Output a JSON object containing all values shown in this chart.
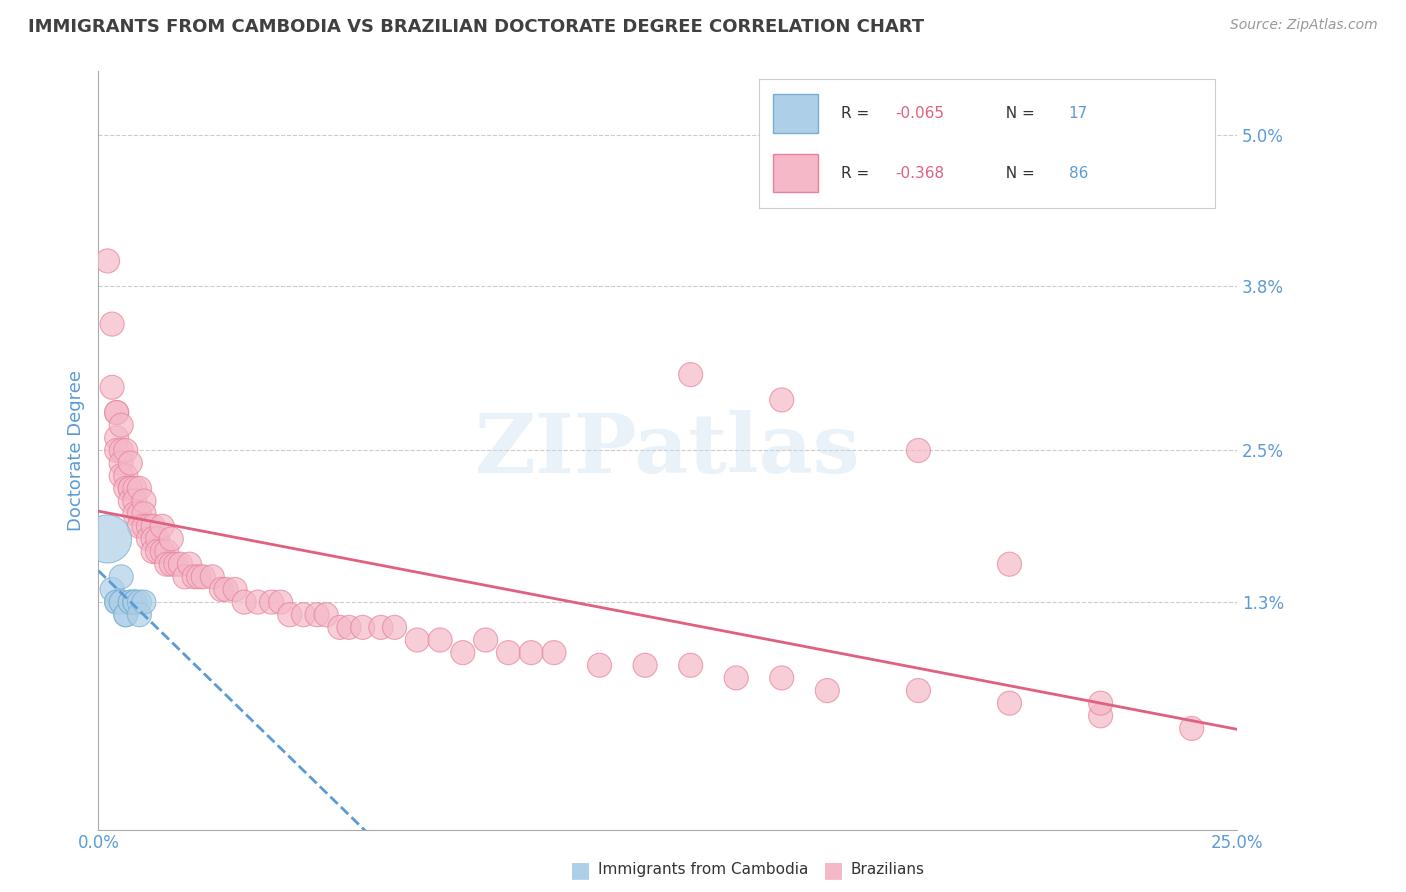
{
  "title": "IMMIGRANTS FROM CAMBODIA VS BRAZILIAN DOCTORATE DEGREE CORRELATION CHART",
  "source": "Source: ZipAtlas.com",
  "ylabel": "Doctorate Degree",
  "xlim": [
    0.0,
    0.25
  ],
  "ylim": [
    -0.005,
    0.055
  ],
  "xtick_labels": [
    "0.0%",
    "25.0%"
  ],
  "xtick_vals": [
    0.0,
    0.25
  ],
  "ytick_labels": [
    "1.3%",
    "2.5%",
    "3.8%",
    "5.0%"
  ],
  "ytick_vals": [
    0.013,
    0.025,
    0.038,
    0.05
  ],
  "color_cambodia": "#aecfe8",
  "color_brazil": "#f4b8c8",
  "color_border_cambodia": "#7aaed0",
  "color_border_brazil": "#e8829a",
  "color_line_cambodia": "#5b9bd5",
  "color_line_brazil": "#e06080",
  "watermark": "ZIPatlas",
  "bg_color": "#ffffff",
  "grid_color": "#cccccc",
  "title_color": "#404040",
  "tick_label_color": "#5b9bd5",
  "legend_text_color": "#333333",
  "r1_color": "#e06080",
  "r2_color": "#e06080",
  "n1_color": "#5b9bd5",
  "n2_color": "#5b9bd5",
  "cambodia_x": [
    0.002,
    0.003,
    0.004,
    0.004,
    0.005,
    0.005,
    0.005,
    0.006,
    0.006,
    0.007,
    0.007,
    0.008,
    0.008,
    0.008,
    0.009,
    0.009,
    0.01
  ],
  "cambodia_y": [
    0.018,
    0.014,
    0.013,
    0.013,
    0.015,
    0.013,
    0.013,
    0.012,
    0.012,
    0.013,
    0.013,
    0.013,
    0.013,
    0.013,
    0.013,
    0.012,
    0.013
  ],
  "cambodia_size": [
    200,
    50,
    50,
    50,
    50,
    50,
    50,
    50,
    50,
    50,
    50,
    50,
    50,
    50,
    50,
    50,
    50
  ],
  "brazil_x": [
    0.002,
    0.003,
    0.003,
    0.004,
    0.004,
    0.004,
    0.004,
    0.005,
    0.005,
    0.005,
    0.005,
    0.006,
    0.006,
    0.006,
    0.007,
    0.007,
    0.007,
    0.007,
    0.008,
    0.008,
    0.008,
    0.009,
    0.009,
    0.009,
    0.01,
    0.01,
    0.01,
    0.011,
    0.011,
    0.012,
    0.012,
    0.012,
    0.013,
    0.013,
    0.014,
    0.014,
    0.015,
    0.015,
    0.016,
    0.016,
    0.017,
    0.018,
    0.019,
    0.02,
    0.021,
    0.022,
    0.023,
    0.025,
    0.027,
    0.028,
    0.03,
    0.032,
    0.035,
    0.038,
    0.04,
    0.042,
    0.045,
    0.048,
    0.05,
    0.053,
    0.055,
    0.058,
    0.062,
    0.065,
    0.07,
    0.075,
    0.08,
    0.085,
    0.09,
    0.095,
    0.1,
    0.11,
    0.12,
    0.13,
    0.14,
    0.15,
    0.16,
    0.18,
    0.2,
    0.22,
    0.24,
    0.13,
    0.15,
    0.18,
    0.2,
    0.22
  ],
  "brazil_y": [
    0.04,
    0.035,
    0.03,
    0.028,
    0.028,
    0.026,
    0.025,
    0.027,
    0.025,
    0.024,
    0.023,
    0.025,
    0.023,
    0.022,
    0.024,
    0.022,
    0.022,
    0.021,
    0.022,
    0.021,
    0.02,
    0.022,
    0.02,
    0.019,
    0.021,
    0.02,
    0.019,
    0.019,
    0.018,
    0.019,
    0.018,
    0.017,
    0.018,
    0.017,
    0.019,
    0.017,
    0.017,
    0.016,
    0.018,
    0.016,
    0.016,
    0.016,
    0.015,
    0.016,
    0.015,
    0.015,
    0.015,
    0.015,
    0.014,
    0.014,
    0.014,
    0.013,
    0.013,
    0.013,
    0.013,
    0.012,
    0.012,
    0.012,
    0.012,
    0.011,
    0.011,
    0.011,
    0.011,
    0.011,
    0.01,
    0.01,
    0.009,
    0.01,
    0.009,
    0.009,
    0.009,
    0.008,
    0.008,
    0.008,
    0.007,
    0.007,
    0.006,
    0.006,
    0.005,
    0.004,
    0.003,
    0.031,
    0.029,
    0.025,
    0.016,
    0.005
  ],
  "brazil_size": [
    50,
    50,
    50,
    50,
    50,
    50,
    50,
    50,
    50,
    50,
    50,
    50,
    50,
    50,
    50,
    50,
    50,
    50,
    50,
    50,
    50,
    50,
    50,
    50,
    50,
    50,
    50,
    50,
    50,
    50,
    50,
    50,
    50,
    50,
    50,
    50,
    50,
    50,
    50,
    50,
    50,
    50,
    50,
    50,
    50,
    50,
    50,
    50,
    50,
    50,
    50,
    50,
    50,
    50,
    50,
    50,
    50,
    50,
    50,
    50,
    50,
    50,
    50,
    50,
    50,
    50,
    50,
    50,
    50,
    50,
    50,
    50,
    50,
    50,
    50,
    50,
    50,
    50,
    50,
    50,
    50,
    50,
    50,
    50,
    50,
    50
  ]
}
